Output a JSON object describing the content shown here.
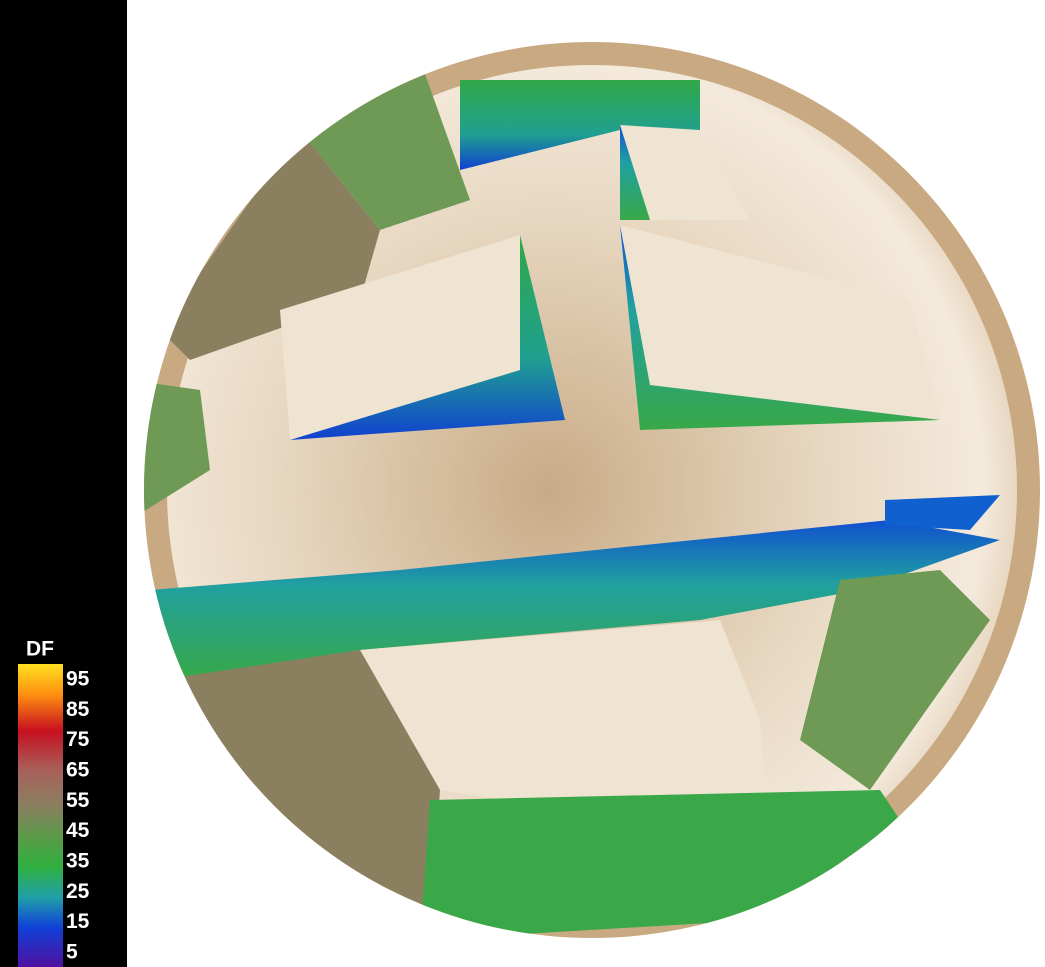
{
  "legend": {
    "title": "DF",
    "labels": [
      "95",
      "85",
      "75",
      "65",
      "55",
      "45",
      "35",
      "25",
      "15",
      "5"
    ]
  }
}
